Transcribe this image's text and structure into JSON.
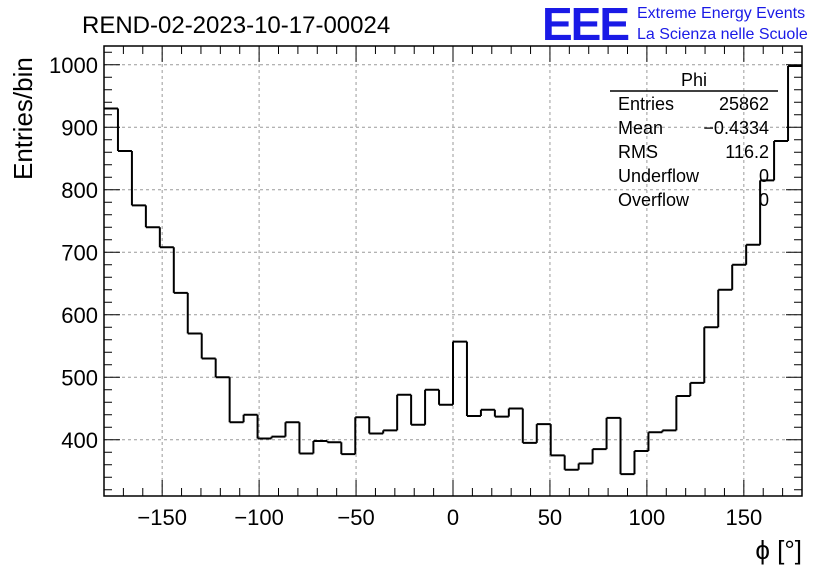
{
  "window": {
    "title": "REND-02-2023-10-17-00024"
  },
  "logo": {
    "mark": "EEE",
    "line1": "Extreme Energy Events",
    "line2": "La Scienza nelle Scuole",
    "color": "#1a1ae6"
  },
  "stats": {
    "name": "Phi",
    "rows": [
      {
        "label": "Entries",
        "value": "25862"
      },
      {
        "label": "Mean",
        "value": "−0.4334"
      },
      {
        "label": "RMS",
        "value": "116.2"
      },
      {
        "label": "Underflow",
        "value": "0"
      },
      {
        "label": "Overflow",
        "value": "0"
      }
    ]
  },
  "chart_data": {
    "type": "bar",
    "style": "step-histogram",
    "title": "REND-02-2023-10-17-00024",
    "xlabel": "ϕ [°]",
    "ylabel": "Entries/bin",
    "xlim": [
      -180,
      180
    ],
    "ylim": [
      310,
      1030
    ],
    "grid": true,
    "xticks": [
      -150,
      -100,
      -50,
      0,
      50,
      100,
      150
    ],
    "yticks": [
      400,
      500,
      600,
      700,
      800,
      900,
      1000
    ],
    "bin_width": 7.2,
    "bin_start": -180,
    "values": [
      930,
      862,
      775,
      740,
      708,
      635,
      570,
      530,
      500,
      428,
      440,
      402,
      405,
      428,
      378,
      398,
      396,
      377,
      436,
      410,
      415,
      472,
      424,
      480,
      456,
      557,
      438,
      448,
      437,
      450,
      395,
      425,
      375,
      352,
      362,
      385,
      435,
      345,
      382,
      412,
      415,
      470,
      491,
      580,
      640,
      680,
      712,
      815,
      878,
      998
    ],
    "line_color": "#000000",
    "grid_color": "#9a9a9a"
  }
}
